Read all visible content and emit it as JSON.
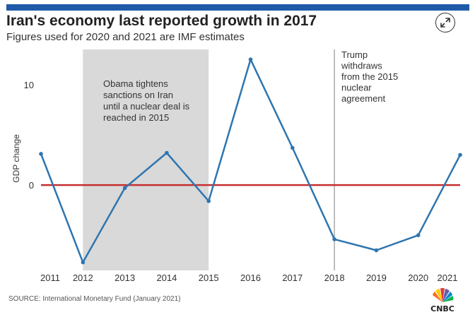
{
  "header": {
    "title": "Iran's economy last reported growth in 2017",
    "subtitle": "Figures used for 2020 and 2021 are IMF estimates"
  },
  "footer": {
    "source": "SOURCE: International Monetary Fund (January 2021)",
    "logo_text": "CNBC"
  },
  "icons": {
    "expand": "expand-arrows-icon",
    "logo": "cnbc-peacock-icon"
  },
  "colors": {
    "line": "#2e75b0",
    "zero_line": "#c62f2f",
    "shade": "#d9d9d9",
    "vline": "#aaaaaa",
    "brand": "#1e5aa8"
  },
  "chart_data": {
    "type": "line",
    "title": "Iran's economy last reported growth in 2017",
    "subtitle": "Figures used for 2020 and 2021 are IMF estimates",
    "ylabel": "GDP change",
    "xlabel": "",
    "x": [
      2011,
      2012,
      2013,
      2014,
      2015,
      2016,
      2017,
      2018,
      2019,
      2020,
      2021
    ],
    "series": [
      {
        "values": [
          3.1,
          -7.7,
          -0.3,
          3.2,
          -1.6,
          12.5,
          3.7,
          -5.4,
          -6.5,
          -5.0,
          3.0
        ]
      }
    ],
    "xlim": [
      2011,
      2021
    ],
    "ylim": [
      -8.5,
      13.5
    ],
    "yticks": [
      0,
      10
    ],
    "xtick_labels": [
      "2011",
      "2012",
      "2013",
      "2014",
      "2015",
      "2016",
      "2017",
      "2018",
      "2019",
      "2020",
      "2021"
    ],
    "reference_line_y": 0,
    "shaded_region": {
      "from": 2012,
      "to": 2015,
      "label": [
        "Obama tightens",
        "sanctions on Iran",
        "until a nuclear deal is",
        "reached in 2015"
      ]
    },
    "vertical_line": {
      "x": 2018,
      "label": [
        "Trump",
        "withdraws",
        "from the 2015",
        "nuclear",
        "agreement"
      ]
    },
    "grid": false,
    "legend": "none"
  }
}
